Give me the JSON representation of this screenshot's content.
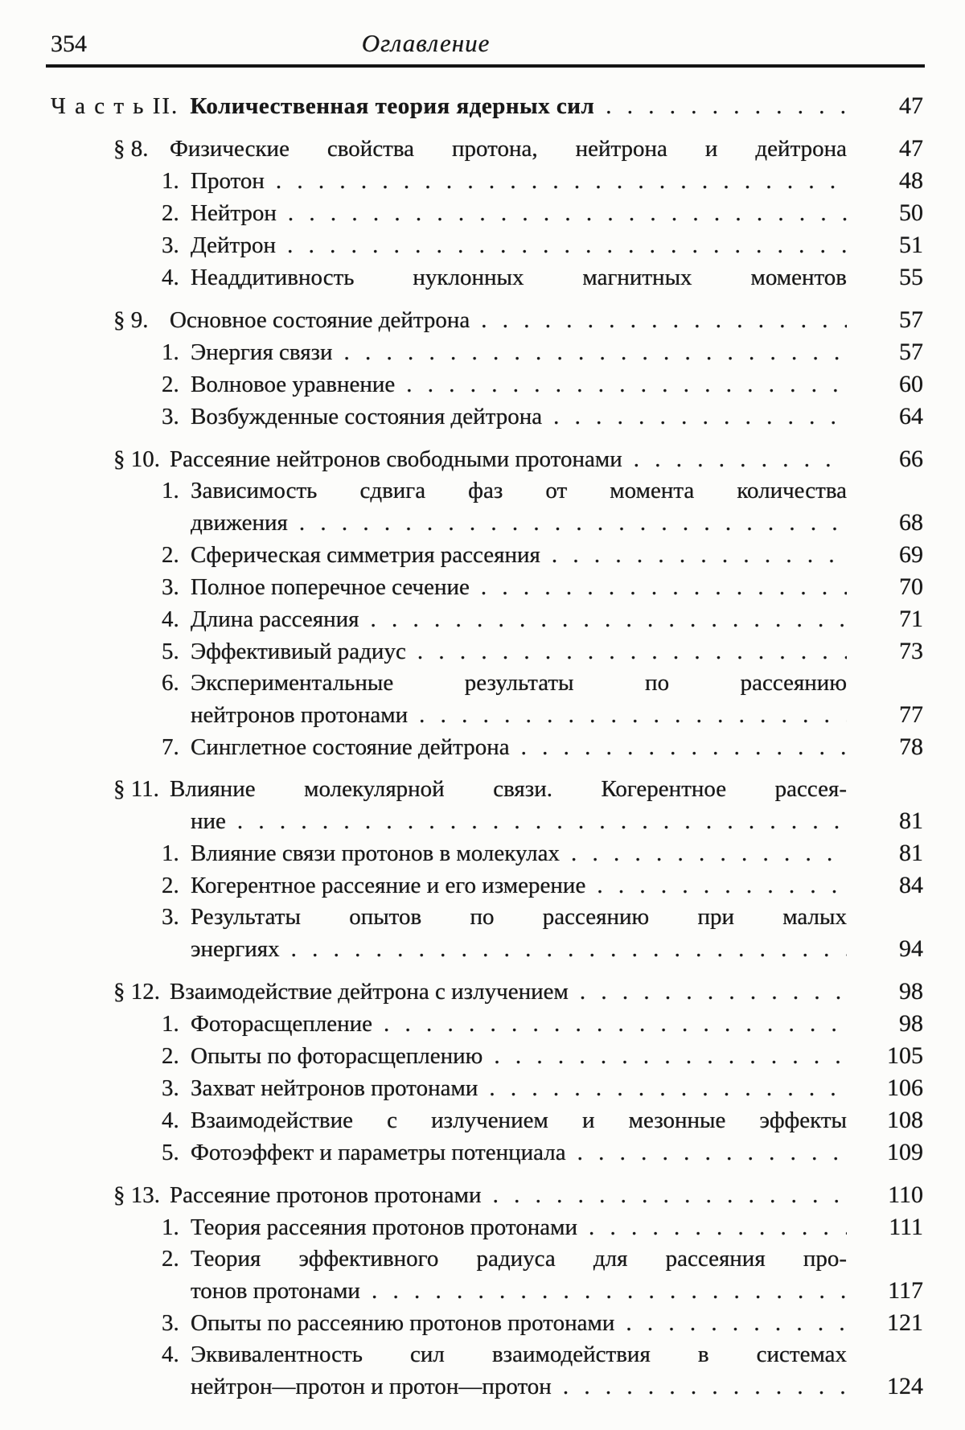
{
  "page": {
    "background": "#fcfcfa",
    "ink": "#181818"
  },
  "header": {
    "page_number": "354",
    "title": "Оглавление"
  },
  "toc": {
    "rows": [
      {
        "type": "part",
        "label": "Ч а с т ь  II.",
        "text": "Количественная теория ядерных сил",
        "dots": true,
        "page": "47"
      },
      {
        "type": "section",
        "label": "§ 8.",
        "text": "Физические свойства протона, нейтрона и дейтрона",
        "justify": true,
        "page": "47"
      },
      {
        "type": "item",
        "label": "1.",
        "text": "Протон",
        "dots": true,
        "page": "48"
      },
      {
        "type": "item",
        "label": "2.",
        "text": "Нейтрон",
        "dots": true,
        "page": "50"
      },
      {
        "type": "item",
        "label": "3.",
        "text": "Дейтрон",
        "dots": true,
        "page": "51"
      },
      {
        "type": "item",
        "label": "4.",
        "text": "Неаддитивность нуклонных магнитных моментов",
        "justify": true,
        "page": "55"
      },
      {
        "type": "section",
        "label": "§ 9.",
        "text": "Основное состояние дейтрона",
        "dots": true,
        "page": "57"
      },
      {
        "type": "item",
        "label": "1.",
        "text": "Энергия связи",
        "dots": true,
        "page": "57"
      },
      {
        "type": "item",
        "label": "2.",
        "text": "Волновое уравнение",
        "dots": true,
        "page": "60"
      },
      {
        "type": "item",
        "label": "3.",
        "text": "Возбужденные состояния дейтрона",
        "dots": true,
        "page": "64"
      },
      {
        "type": "section",
        "label": "§ 10.",
        "text": "Рассеяние нейтронов свободными протонами",
        "dots": true,
        "page": "66"
      },
      {
        "type": "item",
        "label": "1.",
        "text": "Зависимость сдвига фаз от момента количества",
        "justify": true
      },
      {
        "type": "cont",
        "text": "движения",
        "dots": true,
        "page": "68"
      },
      {
        "type": "item",
        "label": "2.",
        "text": "Сферическая симметрия рассеяния",
        "dots": true,
        "page": "69"
      },
      {
        "type": "item",
        "label": "3.",
        "text": "Полное поперечное сечение",
        "dots": true,
        "page": "70"
      },
      {
        "type": "item",
        "label": "4.",
        "text": "Длина рассеяния",
        "dots": true,
        "page": "71"
      },
      {
        "type": "item",
        "label": "5.",
        "text": "Эффективиый радиус",
        "dots": true,
        "page": "73"
      },
      {
        "type": "item",
        "label": "6.",
        "text": "Экспериментальные результаты по рассеянию",
        "justify": true
      },
      {
        "type": "cont",
        "text": "нейтронов протонами",
        "dots": true,
        "page": "77"
      },
      {
        "type": "item",
        "label": "7.",
        "text": "Синглетное состояние дейтрона",
        "dots": true,
        "page": "78"
      },
      {
        "type": "section",
        "label": "§ 11.",
        "text": "Влияние молекулярной связи. Когерентное рассея-",
        "justify": true
      },
      {
        "type": "cont",
        "text": "ние",
        "dots": true,
        "page": "81"
      },
      {
        "type": "item",
        "label": "1.",
        "text": "Влияние связи протонов в молекулах",
        "dots": true,
        "page": "81"
      },
      {
        "type": "item",
        "label": "2.",
        "text": "Когерентное рассеяние и его измерение",
        "dots": true,
        "page": "84"
      },
      {
        "type": "item",
        "label": "3.",
        "text": "Результаты опытов по рассеянию при малых",
        "justify": true
      },
      {
        "type": "cont",
        "text": "энергиях",
        "dots": true,
        "page": "94"
      },
      {
        "type": "section",
        "label": "§ 12.",
        "text": "Взаимодействие дейтрона с излучением",
        "dots": true,
        "page": "98"
      },
      {
        "type": "item",
        "label": "1.",
        "text": "Фоторасщепление",
        "dots": true,
        "page": "98"
      },
      {
        "type": "item",
        "label": "2.",
        "text": "Опыты по фоторасщеплению",
        "dots": true,
        "page": "105"
      },
      {
        "type": "item",
        "label": "3.",
        "text": "Захват нейтронов протонами",
        "dots": true,
        "page": "106"
      },
      {
        "type": "item",
        "label": "4.",
        "text": "Взаимодействие с излучением и мезонные эффекты",
        "justify": true,
        "page": "108"
      },
      {
        "type": "item",
        "label": "5.",
        "text": "Фотоэффект и параметры потенциала",
        "dots": true,
        "page": "109"
      },
      {
        "type": "section",
        "label": "§ 13.",
        "text": "Рассеяние протонов протонами",
        "dots": true,
        "page": "110"
      },
      {
        "type": "item",
        "label": "1.",
        "text": "Теория рассеяния протонов протонами",
        "dots": true,
        "page": "111"
      },
      {
        "type": "item",
        "label": "2.",
        "text": "Теория эффективного радиуса для рассеяния про-",
        "justify": true
      },
      {
        "type": "cont",
        "text": "тонов протонами",
        "dots": true,
        "page": "117"
      },
      {
        "type": "item",
        "label": "3.",
        "text": "Опыты по рассеянию протонов протонами",
        "dots": true,
        "page": "121"
      },
      {
        "type": "item",
        "label": "4.",
        "text": "Эквивалентность сил взаимодействия в системах",
        "justify": true
      },
      {
        "type": "cont",
        "text": "нейтрон—протон и протон—протон",
        "dots": true,
        "page": "124"
      }
    ]
  }
}
